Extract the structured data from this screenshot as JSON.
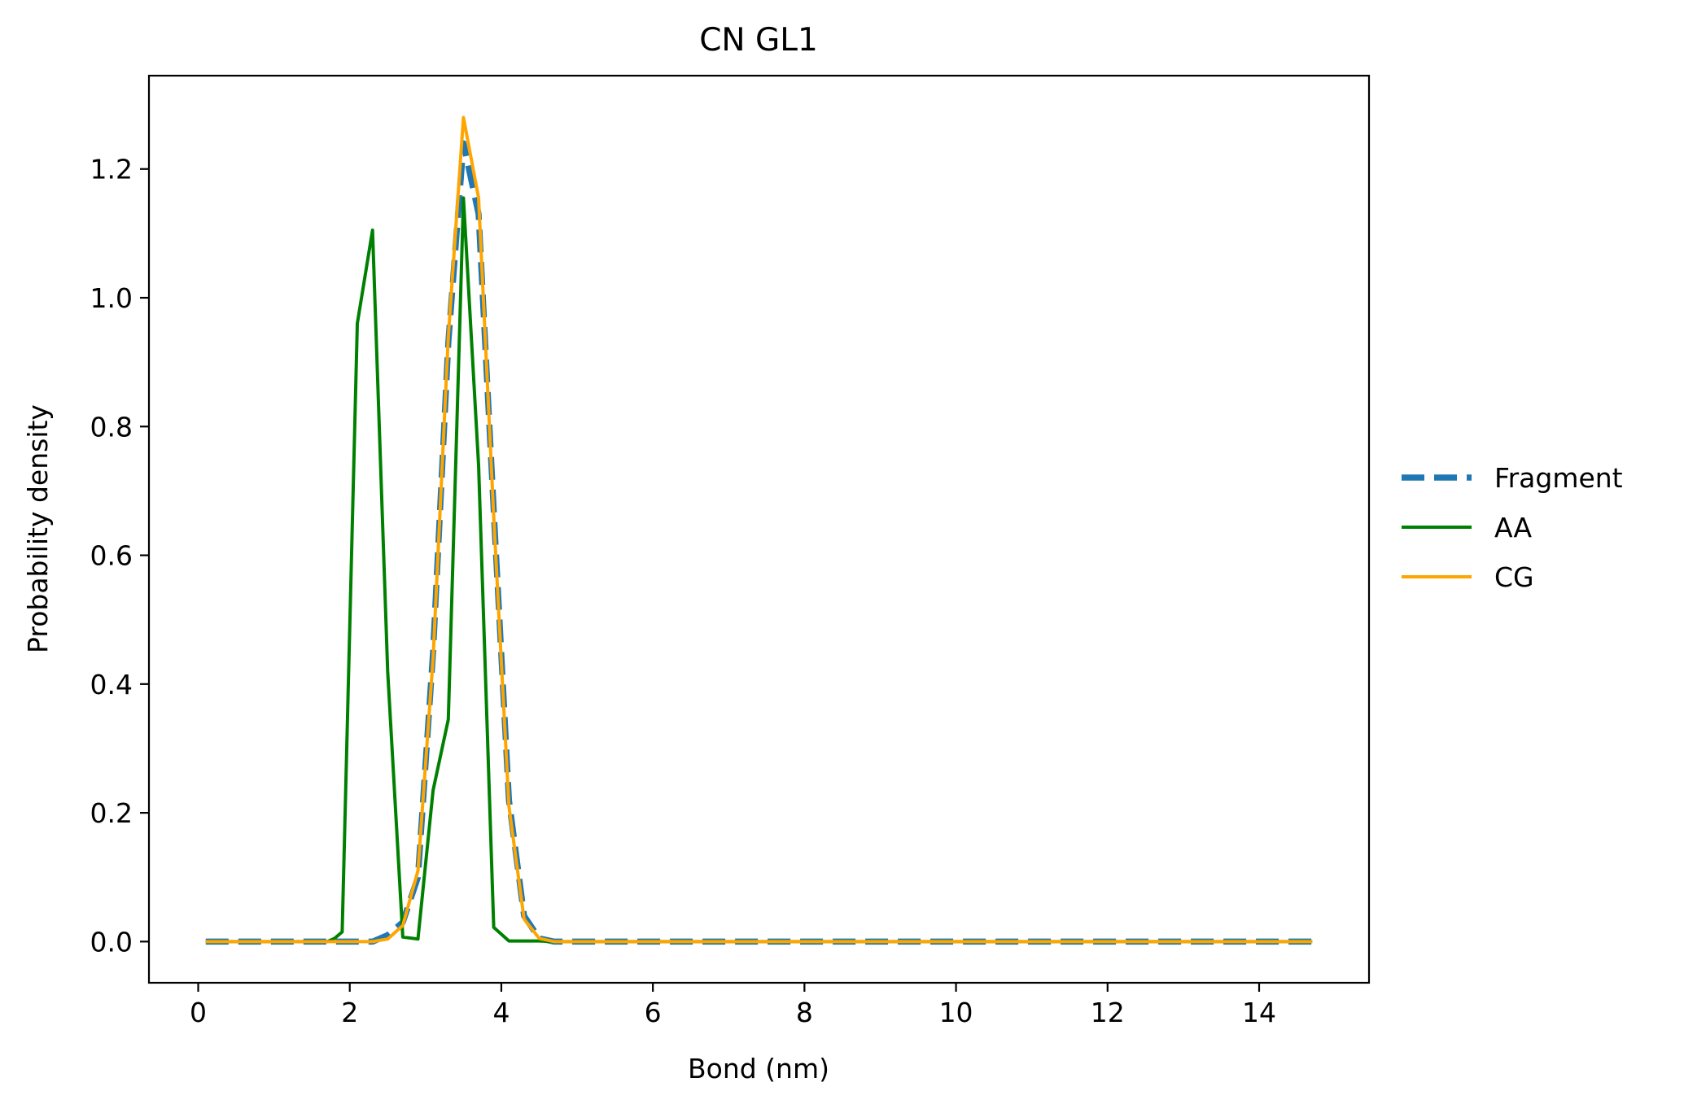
{
  "chart_data": {
    "type": "line",
    "title": "CN GL1",
    "xlabel": "Bond (nm)",
    "ylabel": "Probability density",
    "xlim": [
      -0.65,
      15.45
    ],
    "ylim": [
      -0.064,
      1.345
    ],
    "xticks": [
      0,
      2,
      4,
      6,
      8,
      10,
      12,
      14
    ],
    "xtick_labels": [
      "0",
      "2",
      "4",
      "6",
      "8",
      "10",
      "12",
      "14"
    ],
    "yticks": [
      0.0,
      0.2,
      0.4,
      0.6,
      0.8,
      1.0,
      1.2
    ],
    "ytick_labels": [
      "0.0",
      "0.2",
      "0.4",
      "0.6",
      "0.8",
      "1.0",
      "1.2"
    ],
    "grid": false,
    "legend_position": "outside-right",
    "series": [
      {
        "name": "Fragment",
        "color": "#1f77b4",
        "style": "dashed",
        "x": [
          0.1,
          0.3,
          0.5,
          0.7,
          0.9,
          1.1,
          1.3,
          1.5,
          1.7,
          1.9,
          2.1,
          2.3,
          2.5,
          2.7,
          2.9,
          3.1,
          3.3,
          3.5,
          3.7,
          3.9,
          4.1,
          4.3,
          4.5,
          4.7,
          4.9,
          5.5,
          6.5,
          7.5,
          8.5,
          9.5,
          10.5,
          11.5,
          12.5,
          13.5,
          14.7
        ],
        "y": [
          0,
          0,
          0,
          0,
          0,
          0,
          0,
          0,
          0,
          0,
          0,
          0,
          0.01,
          0.03,
          0.1,
          0.45,
          0.93,
          1.24,
          1.13,
          0.67,
          0.22,
          0.04,
          0.005,
          0,
          0,
          0,
          0,
          0,
          0,
          0,
          0,
          0,
          0,
          0,
          0
        ]
      },
      {
        "name": "AA",
        "color": "#008000",
        "style": "solid",
        "x": [
          0.1,
          0.3,
          0.5,
          0.7,
          0.9,
          1.1,
          1.3,
          1.5,
          1.7,
          1.8,
          1.9,
          2.1,
          2.3,
          2.5,
          2.7,
          2.9,
          3.1,
          3.3,
          3.5,
          3.7,
          3.9,
          4.1,
          4.3,
          4.5,
          4.7,
          5.5,
          6.5,
          7.5,
          8.5,
          9.5,
          10.5,
          11.5,
          12.5,
          13.5,
          14.7
        ],
        "y": [
          0,
          0,
          0,
          0,
          0,
          0,
          0,
          0,
          0,
          0.005,
          0.015,
          0.96,
          1.105,
          0.42,
          0.007,
          0.004,
          0.235,
          0.345,
          1.155,
          0.74,
          0.022,
          0.001,
          0.001,
          0.001,
          0,
          0,
          0,
          0,
          0,
          0,
          0,
          0,
          0,
          0,
          0
        ]
      },
      {
        "name": "CG",
        "color": "#ffa500",
        "style": "solid",
        "x": [
          0.1,
          0.3,
          0.5,
          0.7,
          0.9,
          1.1,
          1.3,
          1.5,
          1.7,
          1.9,
          2.1,
          2.3,
          2.5,
          2.7,
          2.9,
          3.1,
          3.3,
          3.5,
          3.7,
          3.9,
          4.1,
          4.3,
          4.5,
          4.7,
          4.9,
          5.5,
          6.5,
          7.5,
          8.5,
          9.5,
          10.5,
          11.5,
          12.5,
          13.5,
          14.7
        ],
        "y": [
          0,
          0,
          0,
          0,
          0,
          0,
          0,
          0,
          0,
          0,
          0,
          0,
          0.004,
          0.025,
          0.11,
          0.44,
          0.94,
          1.28,
          1.155,
          0.66,
          0.21,
          0.035,
          0.005,
          0,
          0,
          0,
          0,
          0,
          0,
          0,
          0,
          0,
          0,
          0,
          0
        ]
      }
    ]
  }
}
